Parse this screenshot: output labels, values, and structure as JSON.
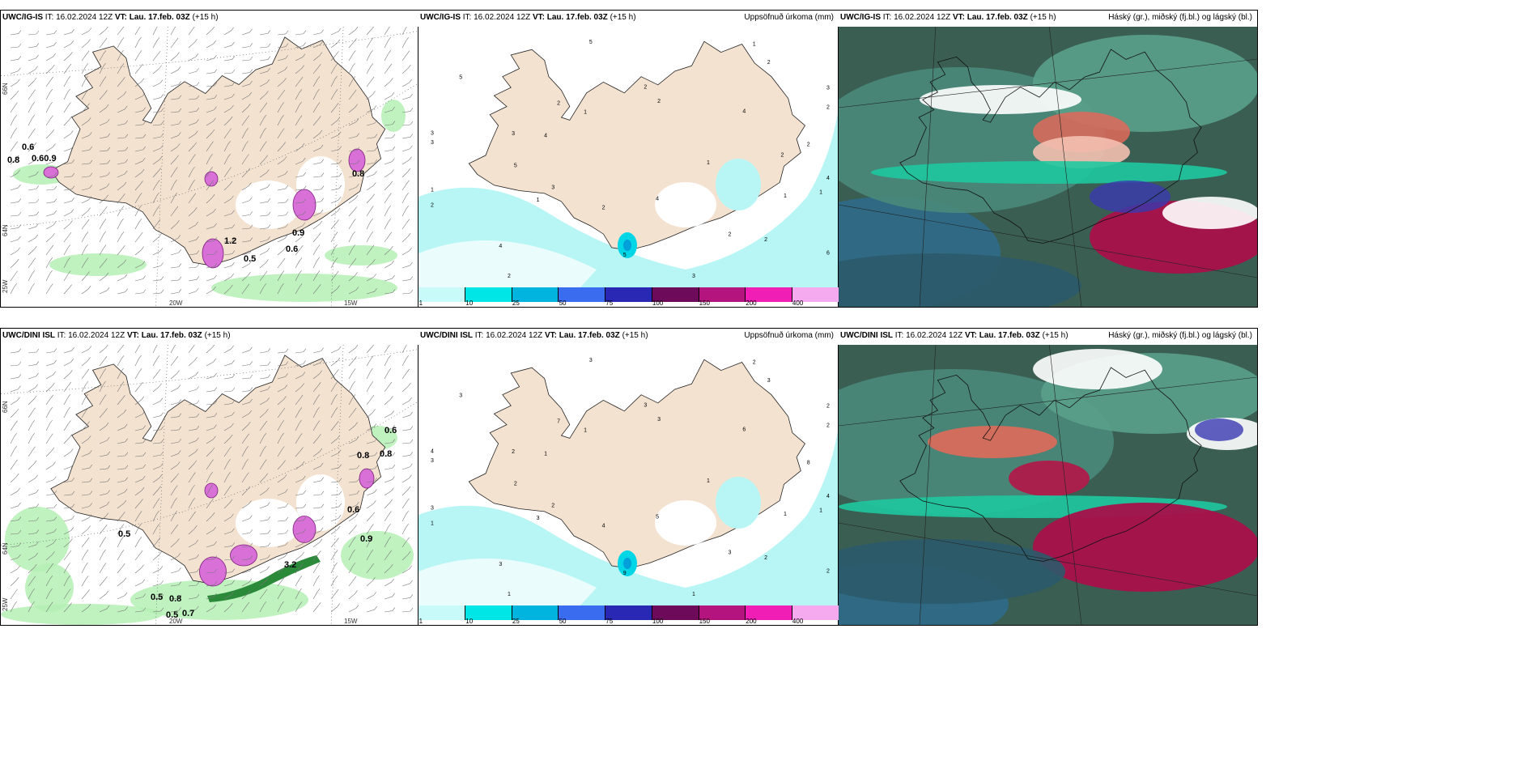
{
  "rows": [
    {
      "model": "UWC/IG-IS",
      "it_label": "IT:",
      "it_value": "16.02.2024 12Z",
      "vt_label": "VT:",
      "vt_value": "Lau. 17.feb. 03Z",
      "lead": "(+15 h)"
    },
    {
      "model": "UWC/DINI ISL",
      "it_label": "IT:",
      "it_value": "16.02.2024 12Z",
      "vt_label": "VT:",
      "vt_value": "Lau. 17.feb. 03Z",
      "lead": "(+15 h)"
    }
  ],
  "precip_title": "Uppsöfnuð úrkoma (mm)",
  "cloud_title": "Háský (gr.), miðský (fj.bl.) og lágský (bl.)",
  "axis": {
    "lat66": "66N",
    "lat64": "64N",
    "lon25": "25W",
    "lon20": "20W",
    "lon15": "15W"
  },
  "colorbar": {
    "ticks": [
      "1",
      "10",
      "25",
      "50",
      "75",
      "100",
      "150",
      "200",
      "400"
    ],
    "colors": [
      "#c8fafa",
      "#00e5e5",
      "#00b4e0",
      "#3a6cf0",
      "#2828b4",
      "#6e0a5a",
      "#b4147e",
      "#f01eb4",
      "#f5aaf0"
    ]
  },
  "colors": {
    "land": "#f3e2d0",
    "snow": "#ffffff",
    "rain_green": "#b4f0b4",
    "rain_dark": "#2a8a3a",
    "snow_purple": "#d870d8",
    "precip_light": "#b8f6f6",
    "dark_map": "#3a5e52"
  },
  "panel1_labels": {
    "top": [
      "0.6",
      "0.8",
      "0.60.9",
      "0.5",
      "0.6",
      "0.9",
      "1.2",
      "0.8"
    ],
    "bottom": [
      "0.6",
      "0.8",
      "0.9",
      "0.5",
      "0.8",
      "0.5",
      "0.7",
      "3.2",
      "0.6",
      "0.8",
      "0.5"
    ]
  },
  "precip_labels": {
    "top": [
      "1",
      "1",
      "2",
      "2",
      "3",
      "3",
      "2",
      "2",
      "1",
      "2",
      "1",
      "4",
      "3",
      "2",
      "4",
      "5",
      "6",
      "5",
      "4",
      "5",
      "5",
      "4",
      "3",
      "2",
      "2",
      "3",
      "2",
      "2",
      "1",
      "1",
      "1",
      "2",
      "3",
      "4",
      "2"
    ],
    "bottom": [
      "1",
      "3",
      "3",
      "2",
      "3",
      "2",
      "4",
      "7",
      "1",
      "1",
      "2",
      "5",
      "2",
      "8",
      "3",
      "3",
      "2",
      "2",
      "6",
      "9",
      "3",
      "4",
      "2",
      "3",
      "3",
      "4",
      "2",
      "1",
      "1",
      "1",
      "3",
      "3",
      "1",
      "1"
    ]
  }
}
